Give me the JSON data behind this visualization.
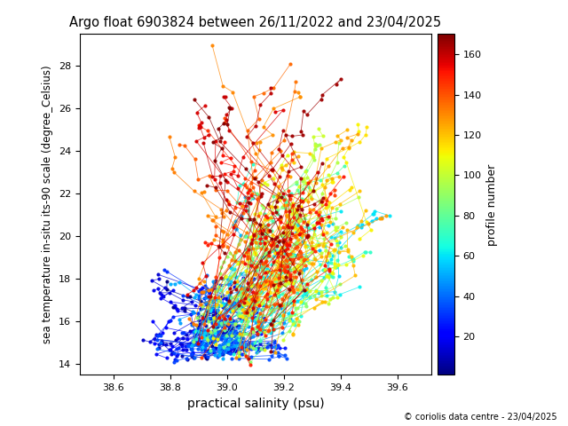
{
  "title": "Argo float 6903824 between 26/11/2022 and 23/04/2025",
  "xlabel": "practical salinity (psu)",
  "ylabel": "sea temperature in-situ its-90 scale (degree_Celsius)",
  "colorbar_label": "profile number",
  "copyright_text": "© coriolis data centre - 23/04/2025",
  "xlim": [
    38.48,
    39.72
  ],
  "ylim": [
    13.5,
    29.5
  ],
  "xticks": [
    38.6,
    38.8,
    39.0,
    39.2,
    39.4,
    39.6
  ],
  "yticks": [
    14,
    16,
    18,
    20,
    22,
    24,
    26,
    28
  ],
  "colormap": "jet",
  "n_profiles": 170,
  "cbar_ticks": [
    20,
    40,
    60,
    80,
    100,
    120,
    140,
    160
  ],
  "cbar_vmin": 1,
  "cbar_vmax": 170,
  "seed": 42
}
